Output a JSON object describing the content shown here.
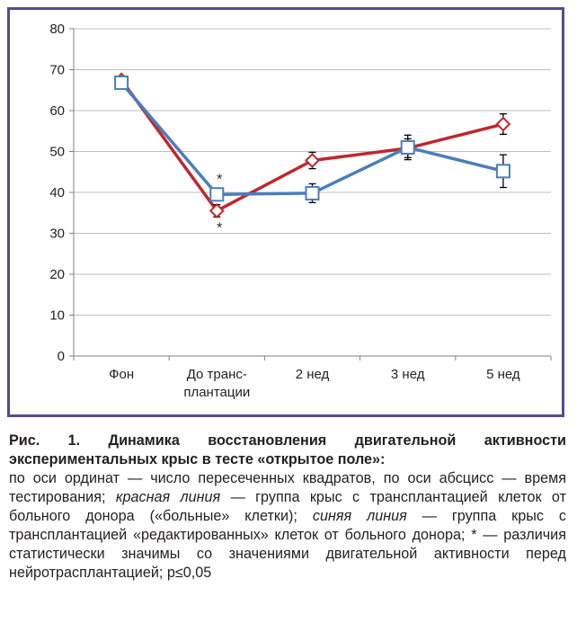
{
  "chart_data": {
    "type": "line",
    "title": "",
    "xlabel": "",
    "ylabel": "",
    "ylim": [
      0,
      80
    ],
    "yticks": [
      0,
      10,
      20,
      30,
      40,
      50,
      60,
      70,
      80
    ],
    "grid": "horizontal",
    "categories": [
      [
        "Фон"
      ],
      [
        "До транс-",
        "плантации"
      ],
      [
        "2 нед"
      ],
      [
        "3 нед"
      ],
      [
        "5 нед"
      ]
    ],
    "series": [
      {
        "color": "#c0272d",
        "marker": "diamond",
        "values": [
          67.5,
          35.5,
          47.8,
          50.8,
          56.7
        ],
        "errors": [
          null,
          1.5,
          2.0,
          2.3,
          2.5
        ]
      },
      {
        "color": "#4a7ebb",
        "marker": "square",
        "values": [
          66.8,
          39.5,
          39.8,
          51.0,
          45.2
        ],
        "errors": [
          null,
          1.5,
          2.3,
          3.0,
          4.0
        ]
      }
    ],
    "annotations": [
      {
        "text": "*",
        "category": 1,
        "series": 1,
        "position": "above"
      },
      {
        "text": "*",
        "category": 1,
        "series": 0,
        "position": "below"
      }
    ]
  },
  "caption": {
    "title": "Рис. 1. Динамика восстановления двигательной активности экспериментальных крыс в тесте «открытое поле»:",
    "body_1": "по оси ординат — число пересеченных квадратов, по оси абсцисс — время тестирования; ",
    "red_term": "красная линия",
    "body_2": " — группа крыс с трансплантацией клеток от больного донора («больные» клетки); ",
    "blue_term": "синяя линия",
    "body_3": " — группа крыс с трансплантацией «редактированных» клеток от больного донора; * — различия статистически значимы со значениями двигательной активности перед нейротрасплантацией; p≤0,05"
  }
}
